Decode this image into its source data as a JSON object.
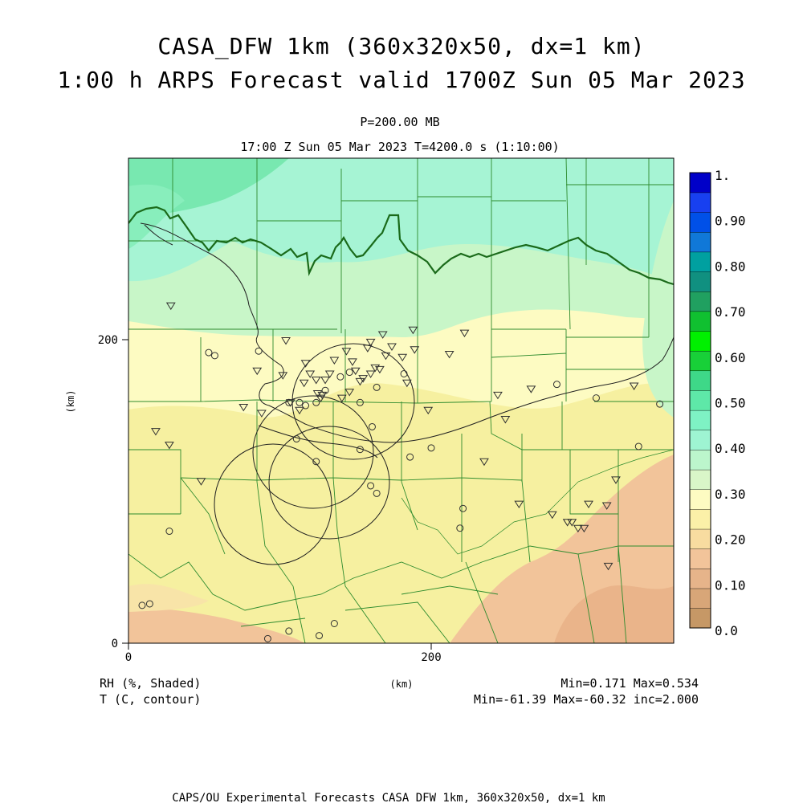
{
  "header": {
    "title": "CASA_DFW 1km (360x320x50, dx=1 km)",
    "subtitle": "1:00 h ARPS Forecast valid 1700Z Sun 05 Mar 2023",
    "level": "P=200.00 MB",
    "time_line": "17:00 Z Sun 05 Mar 2023   T=4200.0 s (1:10:00)"
  },
  "axes": {
    "x_ticks": [
      "0",
      "200"
    ],
    "y_ticks": [
      "0",
      "200"
    ],
    "x_label": "(km)",
    "y_label": "(km)"
  },
  "colorbar": {
    "labels": [
      "1.",
      "0.90",
      "0.80",
      "0.70",
      "0.60",
      "0.50",
      "0.40",
      "0.30",
      "0.20",
      "0.10",
      "0.0"
    ],
    "colors": [
      "#c69866",
      "#d8a678",
      "#e6b48a",
      "#f2c49a",
      "#f8dca0",
      "#fbf0a8",
      "#fdfbc2",
      "#d9f6c8",
      "#bcf6cc",
      "#9ef4d2",
      "#7ef2c4",
      "#5ee8a8",
      "#3ed888",
      "#18d038",
      "#00f000",
      "#10c030",
      "#20a060",
      "#109080",
      "#00a0a0",
      "#1078d8",
      "#0050e8",
      "#1840f0",
      "#0000c8"
    ]
  },
  "legend": {
    "shaded_label": "RH (%, Shaded)",
    "contour_label": "T (C, contour)",
    "bottom_unit": "(km)",
    "rh_stats": "Min=0.171 Max=0.534",
    "t_stats": "Min=-61.39 Max=-60.32 inc=2.000"
  },
  "footer": "CAPS/OU Experimental Forecasts  CASA DFW 1km, 360x320x50, dx=1 km",
  "map_colors": {
    "deep_green": "#78e8b0",
    "mint": "#a6f4d4",
    "light_green": "#c8f6c8",
    "cream": "#fdfbc2",
    "yellow": "#f6f0a0",
    "peach": "#f2c49a",
    "orange": "#eab48a",
    "border": "#2e8b2e",
    "contour": "#202020"
  },
  "stations": {
    "triangles": [
      [
        18,
        140
      ],
      [
        27,
        131
      ],
      [
        28,
        223
      ],
      [
        48,
        107
      ],
      [
        76,
        156
      ],
      [
        85,
        180
      ],
      [
        88,
        152
      ],
      [
        102,
        177
      ],
      [
        104,
        200
      ],
      [
        107,
        159
      ],
      [
        113,
        154
      ],
      [
        116,
        172
      ],
      [
        117,
        185
      ],
      [
        120,
        178
      ],
      [
        124,
        174
      ],
      [
        125,
        165
      ],
      [
        127,
        162
      ],
      [
        128,
        164
      ],
      [
        130,
        174
      ],
      [
        133,
        178
      ],
      [
        136,
        187
      ],
      [
        141,
        162
      ],
      [
        144,
        193
      ],
      [
        146,
        166
      ],
      [
        148,
        186
      ],
      [
        150,
        180
      ],
      [
        153,
        173
      ],
      [
        155,
        175
      ],
      [
        158,
        195
      ],
      [
        160,
        178
      ],
      [
        160,
        199
      ],
      [
        163,
        182
      ],
      [
        166,
        181
      ],
      [
        168,
        204
      ],
      [
        170,
        190
      ],
      [
        174,
        196
      ],
      [
        181,
        189
      ],
      [
        184,
        172
      ],
      [
        188,
        207
      ],
      [
        189,
        194
      ],
      [
        198,
        154
      ],
      [
        212,
        191
      ],
      [
        222,
        205
      ],
      [
        235,
        120
      ],
      [
        249,
        148
      ],
      [
        244,
        164
      ],
      [
        258,
        92
      ],
      [
        266,
        168
      ],
      [
        280,
        85
      ],
      [
        290,
        80
      ],
      [
        293,
        80
      ],
      [
        297,
        76
      ],
      [
        301,
        76
      ],
      [
        304,
        92
      ],
      [
        316,
        91
      ],
      [
        317,
        51
      ],
      [
        322,
        108
      ],
      [
        334,
        170
      ]
    ],
    "circles": [
      [
        27,
        74
      ],
      [
        53,
        192
      ],
      [
        57,
        190
      ],
      [
        86,
        193
      ],
      [
        106,
        159
      ],
      [
        111,
        135
      ],
      [
        113,
        159
      ],
      [
        117,
        157
      ],
      [
        124,
        159
      ],
      [
        124,
        120
      ],
      [
        130,
        167
      ],
      [
        140,
        176
      ],
      [
        146,
        179
      ],
      [
        153,
        159
      ],
      [
        153,
        128
      ],
      [
        160,
        104
      ],
      [
        161,
        143
      ],
      [
        164,
        169
      ],
      [
        164,
        99
      ],
      [
        182,
        178
      ],
      [
        186,
        123
      ],
      [
        200,
        129
      ],
      [
        219,
        76
      ],
      [
        221,
        89
      ],
      [
        283,
        171
      ],
      [
        309,
        162
      ],
      [
        337,
        130
      ],
      [
        351,
        158
      ]
    ],
    "bottom_circles": [
      [
        9,
        25
      ],
      [
        14,
        26
      ],
      [
        92,
        3
      ],
      [
        106,
        8
      ],
      [
        126,
        5
      ],
      [
        136,
        13
      ]
    ]
  }
}
